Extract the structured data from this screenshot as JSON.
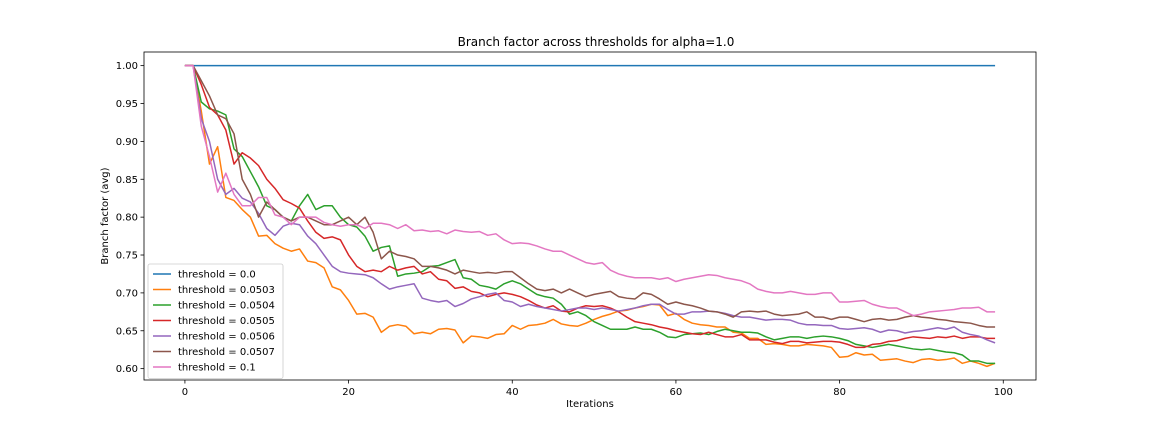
{
  "chart_data": {
    "type": "line",
    "title": "Branch factor across thresholds for alpha=1.0",
    "xlabel": "Iterations",
    "ylabel": "Branch factor (avg)",
    "xlim": [
      -5,
      104
    ],
    "ylim": [
      0.585,
      1.018
    ],
    "xticks": [
      0,
      20,
      40,
      60,
      80,
      100
    ],
    "yticks": [
      0.6,
      0.65,
      0.7,
      0.75,
      0.8,
      0.85,
      0.9,
      0.95,
      1.0
    ],
    "ytick_labels": [
      "0.60",
      "0.65",
      "0.70",
      "0.75",
      "0.80",
      "0.85",
      "0.90",
      "0.95",
      "1.00"
    ],
    "grid": false,
    "legend_position": "lower-left",
    "x_start": 0,
    "x_step": 1,
    "series": [
      {
        "name": "threshold = 0.0",
        "color": "#1f77b4",
        "values": [
          1.0,
          1.0,
          1.0,
          1.0,
          1.0,
          1.0,
          1.0,
          1.0,
          1.0,
          1.0,
          1.0,
          1.0,
          1.0,
          1.0,
          1.0,
          1.0,
          1.0,
          1.0,
          1.0,
          1.0,
          1.0,
          1.0,
          1.0,
          1.0,
          1.0,
          1.0,
          1.0,
          1.0,
          1.0,
          1.0,
          1.0,
          1.0,
          1.0,
          1.0,
          1.0,
          1.0,
          1.0,
          1.0,
          1.0,
          1.0,
          1.0,
          1.0,
          1.0,
          1.0,
          1.0,
          1.0,
          1.0,
          1.0,
          1.0,
          1.0,
          1.0,
          1.0,
          1.0,
          1.0,
          1.0,
          1.0,
          1.0,
          1.0,
          1.0,
          1.0,
          1.0,
          1.0,
          1.0,
          1.0,
          1.0,
          1.0,
          1.0,
          1.0,
          1.0,
          1.0,
          1.0,
          1.0,
          1.0,
          1.0,
          1.0,
          1.0,
          1.0,
          1.0,
          1.0,
          1.0,
          1.0,
          1.0,
          1.0,
          1.0,
          1.0,
          1.0,
          1.0,
          1.0,
          1.0,
          1.0,
          1.0,
          1.0,
          1.0,
          1.0,
          1.0,
          1.0,
          1.0,
          1.0,
          1.0,
          1.0
        ]
      },
      {
        "name": "threshold = 0.0503",
        "color": "#ff7f0e",
        "values": [
          1.0,
          1.0,
          0.94,
          0.87,
          0.893,
          0.826,
          0.822,
          0.81,
          0.8,
          0.775,
          0.776,
          0.765,
          0.759,
          0.755,
          0.758,
          0.742,
          0.74,
          0.733,
          0.708,
          0.704,
          0.69,
          0.672,
          0.673,
          0.668,
          0.648,
          0.656,
          0.658,
          0.656,
          0.646,
          0.648,
          0.646,
          0.652,
          0.653,
          0.651,
          0.634,
          0.643,
          0.642,
          0.64,
          0.645,
          0.646,
          0.657,
          0.652,
          0.657,
          0.658,
          0.66,
          0.665,
          0.659,
          0.657,
          0.656,
          0.66,
          0.665,
          0.669,
          0.672,
          0.676,
          0.677,
          0.68,
          0.682,
          0.685,
          0.684,
          0.67,
          0.673,
          0.665,
          0.66,
          0.658,
          0.657,
          0.655,
          0.655,
          0.648,
          0.647,
          0.64,
          0.64,
          0.632,
          0.633,
          0.632,
          0.63,
          0.63,
          0.632,
          0.631,
          0.63,
          0.628,
          0.615,
          0.616,
          0.621,
          0.618,
          0.619,
          0.611,
          0.612,
          0.613,
          0.61,
          0.608,
          0.612,
          0.613,
          0.611,
          0.612,
          0.614,
          0.607,
          0.61,
          0.607,
          0.603,
          0.607
        ]
      },
      {
        "name": "threshold = 0.0504",
        "color": "#2ca02c",
        "values": [
          1.0,
          1.0,
          0.952,
          0.943,
          0.94,
          0.935,
          0.89,
          0.88,
          0.86,
          0.84,
          0.815,
          0.81,
          0.8,
          0.795,
          0.815,
          0.83,
          0.81,
          0.815,
          0.815,
          0.8,
          0.79,
          0.787,
          0.775,
          0.755,
          0.76,
          0.762,
          0.722,
          0.725,
          0.726,
          0.728,
          0.735,
          0.736,
          0.74,
          0.744,
          0.72,
          0.718,
          0.71,
          0.708,
          0.705,
          0.712,
          0.716,
          0.712,
          0.705,
          0.698,
          0.695,
          0.693,
          0.685,
          0.672,
          0.675,
          0.67,
          0.662,
          0.657,
          0.652,
          0.652,
          0.652,
          0.655,
          0.652,
          0.652,
          0.648,
          0.642,
          0.641,
          0.645,
          0.646,
          0.647,
          0.645,
          0.649,
          0.652,
          0.65,
          0.648,
          0.648,
          0.647,
          0.642,
          0.638,
          0.64,
          0.642,
          0.642,
          0.64,
          0.642,
          0.643,
          0.642,
          0.64,
          0.637,
          0.632,
          0.63,
          0.628,
          0.63,
          0.632,
          0.63,
          0.628,
          0.626,
          0.625,
          0.626,
          0.624,
          0.622,
          0.621,
          0.618,
          0.61,
          0.61,
          0.607,
          0.607
        ]
      },
      {
        "name": "threshold = 0.0505",
        "color": "#d62728",
        "values": [
          1.0,
          1.0,
          0.975,
          0.945,
          0.935,
          0.915,
          0.87,
          0.885,
          0.878,
          0.868,
          0.85,
          0.838,
          0.823,
          0.818,
          0.812,
          0.795,
          0.78,
          0.772,
          0.774,
          0.77,
          0.75,
          0.735,
          0.728,
          0.73,
          0.728,
          0.735,
          0.73,
          0.733,
          0.735,
          0.725,
          0.728,
          0.718,
          0.716,
          0.706,
          0.708,
          0.702,
          0.7,
          0.695,
          0.698,
          0.7,
          0.698,
          0.695,
          0.69,
          0.684,
          0.68,
          0.683,
          0.676,
          0.675,
          0.68,
          0.683,
          0.682,
          0.683,
          0.68,
          0.675,
          0.668,
          0.662,
          0.66,
          0.658,
          0.655,
          0.653,
          0.65,
          0.648,
          0.646,
          0.645,
          0.648,
          0.645,
          0.642,
          0.642,
          0.645,
          0.638,
          0.638,
          0.638,
          0.635,
          0.633,
          0.636,
          0.636,
          0.634,
          0.635,
          0.636,
          0.636,
          0.635,
          0.632,
          0.628,
          0.628,
          0.632,
          0.633,
          0.636,
          0.637,
          0.64,
          0.642,
          0.641,
          0.64,
          0.642,
          0.641,
          0.643,
          0.64,
          0.642,
          0.642,
          0.64,
          0.64
        ]
      },
      {
        "name": "threshold = 0.0506",
        "color": "#9467bd",
        "values": [
          1.0,
          1.0,
          0.93,
          0.9,
          0.85,
          0.83,
          0.838,
          0.825,
          0.82,
          0.805,
          0.785,
          0.776,
          0.788,
          0.792,
          0.79,
          0.775,
          0.765,
          0.75,
          0.735,
          0.728,
          0.726,
          0.725,
          0.724,
          0.72,
          0.712,
          0.705,
          0.708,
          0.71,
          0.712,
          0.693,
          0.69,
          0.688,
          0.69,
          0.682,
          0.686,
          0.692,
          0.695,
          0.698,
          0.7,
          0.69,
          0.688,
          0.682,
          0.685,
          0.682,
          0.68,
          0.678,
          0.676,
          0.678,
          0.68,
          0.68,
          0.678,
          0.68,
          0.678,
          0.676,
          0.678,
          0.68,
          0.683,
          0.685,
          0.685,
          0.678,
          0.672,
          0.672,
          0.675,
          0.675,
          0.676,
          0.675,
          0.673,
          0.67,
          0.668,
          0.668,
          0.666,
          0.664,
          0.665,
          0.665,
          0.664,
          0.66,
          0.658,
          0.658,
          0.657,
          0.657,
          0.653,
          0.652,
          0.653,
          0.654,
          0.652,
          0.648,
          0.651,
          0.65,
          0.647,
          0.649,
          0.65,
          0.652,
          0.654,
          0.652,
          0.655,
          0.648,
          0.645,
          0.643,
          0.638,
          0.634
        ]
      },
      {
        "name": "threshold = 0.0507",
        "color": "#8c564b",
        "values": [
          1.0,
          1.0,
          0.98,
          0.96,
          0.935,
          0.93,
          0.91,
          0.85,
          0.83,
          0.8,
          0.82,
          0.81,
          0.8,
          0.795,
          0.8,
          0.8,
          0.795,
          0.79,
          0.79,
          0.795,
          0.8,
          0.79,
          0.8,
          0.78,
          0.745,
          0.755,
          0.75,
          0.748,
          0.745,
          0.735,
          0.735,
          0.733,
          0.73,
          0.725,
          0.73,
          0.728,
          0.726,
          0.727,
          0.726,
          0.728,
          0.728,
          0.72,
          0.712,
          0.705,
          0.703,
          0.705,
          0.7,
          0.705,
          0.7,
          0.695,
          0.698,
          0.7,
          0.702,
          0.695,
          0.693,
          0.692,
          0.7,
          0.698,
          0.692,
          0.685,
          0.688,
          0.685,
          0.683,
          0.68,
          0.676,
          0.675,
          0.672,
          0.668,
          0.675,
          0.676,
          0.675,
          0.676,
          0.672,
          0.67,
          0.671,
          0.672,
          0.675,
          0.668,
          0.668,
          0.665,
          0.668,
          0.668,
          0.665,
          0.662,
          0.665,
          0.666,
          0.664,
          0.665,
          0.668,
          0.67,
          0.668,
          0.667,
          0.665,
          0.664,
          0.662,
          0.661,
          0.66,
          0.657,
          0.655,
          0.655
        ]
      },
      {
        "name": "threshold = 0.1",
        "color": "#e377c2",
        "values": [
          1.0,
          1.0,
          0.92,
          0.88,
          0.833,
          0.858,
          0.83,
          0.815,
          0.815,
          0.826,
          0.826,
          0.803,
          0.8,
          0.79,
          0.8,
          0.8,
          0.8,
          0.793,
          0.79,
          0.788,
          0.79,
          0.79,
          0.785,
          0.792,
          0.792,
          0.79,
          0.785,
          0.79,
          0.782,
          0.783,
          0.781,
          0.782,
          0.778,
          0.783,
          0.781,
          0.78,
          0.781,
          0.776,
          0.778,
          0.77,
          0.765,
          0.766,
          0.765,
          0.762,
          0.758,
          0.755,
          0.755,
          0.75,
          0.745,
          0.74,
          0.738,
          0.74,
          0.73,
          0.725,
          0.722,
          0.72,
          0.72,
          0.72,
          0.718,
          0.72,
          0.715,
          0.718,
          0.72,
          0.722,
          0.724,
          0.723,
          0.72,
          0.718,
          0.716,
          0.712,
          0.705,
          0.702,
          0.7,
          0.7,
          0.702,
          0.7,
          0.698,
          0.698,
          0.7,
          0.7,
          0.688,
          0.688,
          0.689,
          0.69,
          0.685,
          0.682,
          0.68,
          0.68,
          0.675,
          0.67,
          0.672,
          0.675,
          0.676,
          0.677,
          0.678,
          0.68,
          0.68,
          0.681,
          0.675,
          0.675
        ]
      }
    ]
  }
}
